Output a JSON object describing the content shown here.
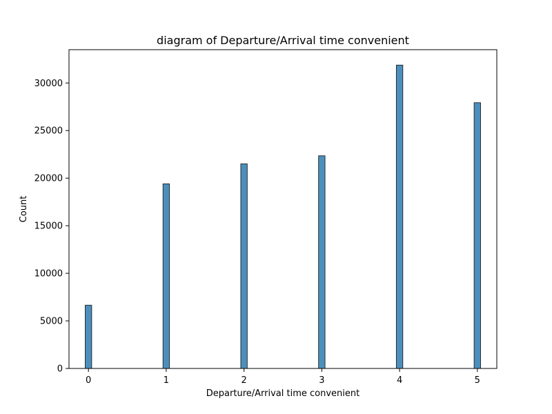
{
  "chart_data": {
    "type": "bar",
    "title": "diagram of Departure/Arrival time convenient",
    "xlabel": "Departure/Arrival time convenient",
    "ylabel": "Count",
    "categories": [
      "0",
      "1",
      "2",
      "3",
      "4",
      "5"
    ],
    "x": [
      0,
      1,
      2,
      3,
      4,
      5
    ],
    "values": [
      6650,
      19400,
      21500,
      22350,
      31880,
      27930
    ],
    "xlim": [
      -0.25,
      5.25
    ],
    "ylim": [
      0,
      33500
    ],
    "xticks": [
      0,
      1,
      2,
      3,
      4,
      5
    ],
    "xtick_labels": [
      "0",
      "1",
      "2",
      "3",
      "4",
      "5"
    ],
    "yticks": [
      0,
      5000,
      10000,
      15000,
      20000,
      25000,
      30000
    ],
    "ytick_labels": [
      "0",
      "5000",
      "10000",
      "15000",
      "20000",
      "25000",
      "30000"
    ],
    "bar_width": 0.083,
    "grid": false,
    "legend": "none",
    "colors": {
      "bar_fill": "#4c8fbd",
      "bar_edge": "#1f1f1f",
      "axis": "#000000",
      "text": "#000000"
    }
  }
}
